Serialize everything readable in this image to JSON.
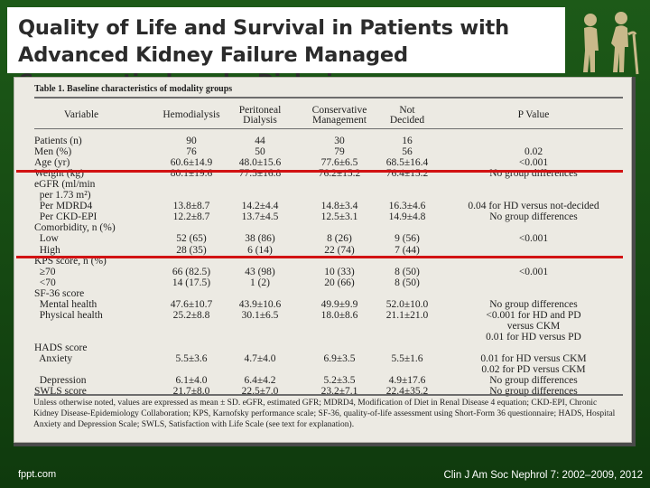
{
  "slide": {
    "title": "Quality of Life and Survival in Patients with Advanced Kidney Failure Managed Conservatively or by Dialysis",
    "footer_left": "fppt.com",
    "footer_right": "Clin J Am Soc Nephrol 7: 2002–2009, 2012"
  },
  "table": {
    "caption": "Table 1.   Baseline characteristics of modality groups",
    "headers": [
      "Variable",
      "Hemodialysis",
      "Peritoneal\nDialysis",
      "Conservative\nManagement",
      "Not\nDecided",
      "P Value"
    ],
    "rows": [
      [
        "Patients (n)",
        "90",
        "44",
        "30",
        "16",
        ""
      ],
      [
        "Men (%)",
        "76",
        "50",
        "79",
        "56",
        "0.02"
      ],
      [
        "Age (yr)",
        "60.6±14.9",
        "48.0±15.6",
        "77.6±6.5",
        "68.5±16.4",
        "<0.001"
      ],
      [
        "Weight (kg)",
        "80.1±19.6",
        "77.5±16.8",
        "76.2±15.2",
        "76.4±15.2",
        "No group differences"
      ],
      [
        "eGFR (ml/min",
        "",
        "",
        "",
        "",
        ""
      ],
      [
        "  per 1.73 m²)",
        "",
        "",
        "",
        "",
        ""
      ],
      [
        "  Per MDRD4",
        "13.8±8.7",
        "14.2±4.4",
        "14.8±3.4",
        "16.3±4.6",
        "0.04 for HD versus not-decided"
      ],
      [
        "  Per CKD-EPI",
        "12.2±8.7",
        "13.7±4.5",
        "12.5±3.1",
        "14.9±4.8",
        "No group differences"
      ],
      [
        "Comorbidity, n (%)",
        "",
        "",
        "",
        "",
        ""
      ],
      [
        "  Low",
        "52 (65)",
        "38 (86)",
        "8 (26)",
        "9 (56)",
        "<0.001"
      ],
      [
        "  High",
        "28 (35)",
        "6 (14)",
        "22 (74)",
        "7 (44)",
        ""
      ],
      [
        "KPS score, n (%)",
        "",
        "",
        "",
        "",
        ""
      ],
      [
        "  ≥70",
        "66 (82.5)",
        "43 (98)",
        "10 (33)",
        "8 (50)",
        "<0.001"
      ],
      [
        "  <70",
        "14 (17.5)",
        "1 (2)",
        "20 (66)",
        "8 (50)",
        ""
      ],
      [
        "SF-36 score",
        "",
        "",
        "",
        "",
        ""
      ],
      [
        "  Mental health",
        "47.6±10.7",
        "43.9±10.6",
        "49.9±9.9",
        "52.0±10.0",
        "No group differences"
      ],
      [
        "  Physical health",
        "25.2±8.8",
        "30.1±6.5",
        "18.0±8.6",
        "21.1±21.0",
        "<0.001 for HD and PD"
      ],
      [
        "",
        "",
        "",
        "",
        "",
        "versus CKM"
      ],
      [
        "",
        "",
        "",
        "",
        "",
        "0.01 for HD versus PD"
      ],
      [
        "HADS score",
        "",
        "",
        "",
        "",
        ""
      ],
      [
        "  Anxiety",
        "5.5±3.6",
        "4.7±4.0",
        "6.9±3.5",
        "5.5±1.6",
        "0.01 for HD versus CKM"
      ],
      [
        "",
        "",
        "",
        "",
        "",
        "0.02 for PD versus CKM"
      ],
      [
        "  Depression",
        "6.1±4.0",
        "6.4±4.2",
        "5.2±3.5",
        "4.9±17.6",
        "No group differences"
      ],
      [
        "SWLS score",
        "21.7±8.0",
        "22.5±7.0",
        "23.2±7.1",
        "22.4±35.2",
        "No group differences"
      ]
    ],
    "footnote": "Unless otherwise noted, values are expressed as mean ± SD. eGFR, estimated GFR; MDRD4, Modification of Diet in Renal Disease 4 equation; CKD-EPI, Chronic Kidney Disease-Epidemiology Collaboration; KPS, Karnofsky performance scale; SF-36, quality-of-life assessment using Short-Form 36 questionnaire; HADS, Hospital Anxiety and Depression Scale; SWLS, Satisfaction with Life Scale (see text for explanation)."
  },
  "colors": {
    "background": "#1d5a18",
    "highlight_line": "#d21313",
    "paper": "#eceae3"
  }
}
